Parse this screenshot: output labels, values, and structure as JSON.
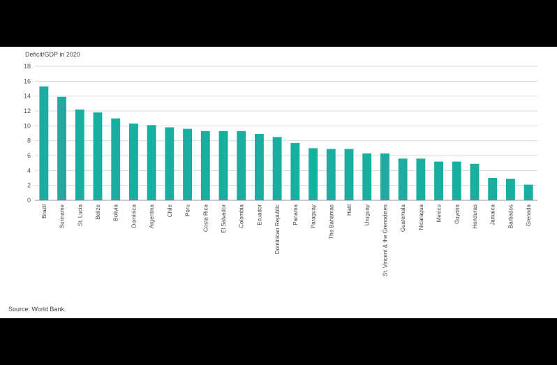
{
  "chart_data": {
    "type": "bar",
    "ylabel": "Deficit/GDP in 2020",
    "source": "Source: World Bank.",
    "ylim": [
      0,
      18
    ],
    "yticks": [
      0,
      2,
      4,
      6,
      8,
      10,
      12,
      14,
      16,
      18
    ],
    "grid": true,
    "bar_color": "#1aaea0",
    "categories": [
      "Brazil",
      "Suriname",
      "St. Lucia",
      "Belize",
      "Bolivia",
      "Dominica",
      "Argentina",
      "Chile",
      "Peru",
      "Costa Rica",
      "El Salvador",
      "Colombia",
      "Ecuador",
      "Dominican Republic",
      "Panama",
      "Paraguay",
      "The Bahamas",
      "Haiti",
      "Uruguay",
      "St. Vincent & the Grenadines",
      "Guatemala",
      "Nicaragua",
      "Mexico",
      "Guyana",
      "Honduras",
      "Jamaica",
      "Barbados",
      "Grenada"
    ],
    "values": [
      15.3,
      13.9,
      12.2,
      11.8,
      11.0,
      10.3,
      10.1,
      9.8,
      9.6,
      9.3,
      9.3,
      9.3,
      8.9,
      8.5,
      7.7,
      7.0,
      6.9,
      6.9,
      6.3,
      6.3,
      5.6,
      5.6,
      5.2,
      5.2,
      4.9,
      3.0,
      2.9,
      2.1
    ]
  }
}
